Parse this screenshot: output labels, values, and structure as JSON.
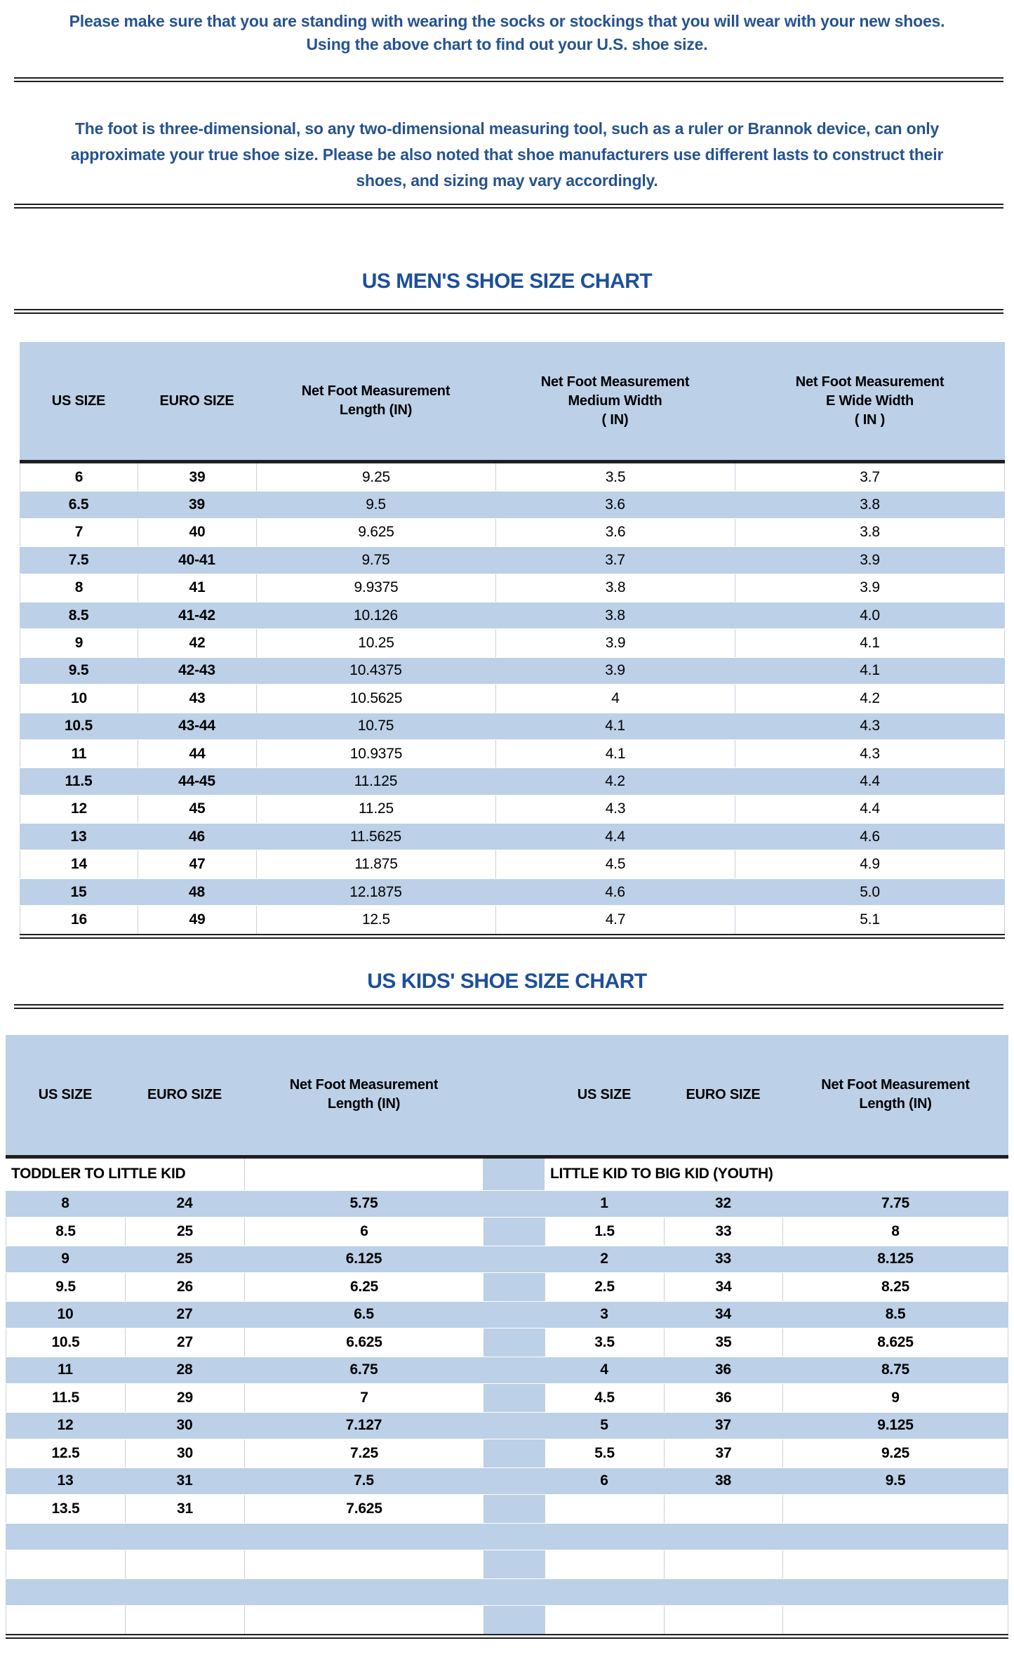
{
  "colors": {
    "row_blue": "#bcd0e7",
    "text_blue": "#26538f",
    "title_blue": "#1d4f9b",
    "line_dark": "#1e1e1e",
    "cell_border": "#c9d1da"
  },
  "intro": "Please make sure that you are standing with wearing the socks or stockings that you will wear with your new shoes.\nUsing the above chart to find out your U.S. shoe size.",
  "note": "The foot is three-dimensional, so any two-dimensional measuring tool, such as a ruler or Brannok device, can only\napproximate your true shoe size. Please be also noted that shoe manufacturers use different lasts to construct their\nshoes, and sizing may vary accordingly.",
  "mens_chart": {
    "title": "US MEN'S SHOE SIZE CHART",
    "headers": [
      "US SIZE",
      "EURO SIZE",
      "Net Foot Measurement\nLength (IN)",
      "Net Foot Measurement\nMedium Width\n( IN)",
      "Net Foot Measurement\nE Wide Width\n( IN )"
    ],
    "rows": [
      [
        "6",
        "39",
        "9.25",
        "3.5",
        "3.7"
      ],
      [
        "6.5",
        "39",
        "9.5",
        "3.6",
        "3.8"
      ],
      [
        "7",
        "40",
        "9.625",
        "3.6",
        "3.8"
      ],
      [
        "7.5",
        "40-41",
        "9.75",
        "3.7",
        "3.9"
      ],
      [
        "8",
        "41",
        "9.9375",
        "3.8",
        "3.9"
      ],
      [
        "8.5",
        "41-42",
        "10.126",
        "3.8",
        "4.0"
      ],
      [
        "9",
        "42",
        "10.25",
        "3.9",
        "4.1"
      ],
      [
        "9.5",
        "42-43",
        "10.4375",
        "3.9",
        "4.1"
      ],
      [
        "10",
        "43",
        "10.5625",
        "4",
        "4.2"
      ],
      [
        "10.5",
        "43-44",
        "10.75",
        "4.1",
        "4.3"
      ],
      [
        "11",
        "44",
        "10.9375",
        "4.1",
        "4.3"
      ],
      [
        "11.5",
        "44-45",
        "11.125",
        "4.2",
        "4.4"
      ],
      [
        "12",
        "45",
        "11.25",
        "4.3",
        "4.4"
      ],
      [
        "13",
        "46",
        "11.5625",
        "4.4",
        "4.6"
      ],
      [
        "14",
        "47",
        "11.875",
        "4.5",
        "4.9"
      ],
      [
        "15",
        "48",
        "12.1875",
        "4.6",
        "5.0"
      ],
      [
        "16",
        "49",
        "12.5",
        "4.7",
        "5.1"
      ]
    ]
  },
  "kids_chart": {
    "title": "US KIDS' SHOE SIZE CHART",
    "headers": [
      "US SIZE",
      "EURO SIZE",
      "Net Foot Measurement\nLength (IN)",
      "US SIZE",
      "EURO SIZE",
      "Net Foot Measurement\nLength (IN)"
    ],
    "left_section_label": "TODDLER TO LITTLE KID",
    "right_section_label": "LITTLE KID TO BIG KID (YOUTH)",
    "rows": [
      [
        "8",
        "24",
        "5.75",
        "1",
        "32",
        "7.75"
      ],
      [
        "8.5",
        "25",
        "6",
        "1.5",
        "33",
        "8"
      ],
      [
        "9",
        "25",
        "6.125",
        "2",
        "33",
        "8.125"
      ],
      [
        "9.5",
        "26",
        "6.25",
        "2.5",
        "34",
        "8.25"
      ],
      [
        "10",
        "27",
        "6.5",
        "3",
        "34",
        "8.5"
      ],
      [
        "10.5",
        "27",
        "6.625",
        "3.5",
        "35",
        "8.625"
      ],
      [
        "11",
        "28",
        "6.75",
        "4",
        "36",
        "8.75"
      ],
      [
        "11.5",
        "29",
        "7",
        "4.5",
        "36",
        "9"
      ],
      [
        "12",
        "30",
        "7.127",
        "5",
        "37",
        "9.125"
      ],
      [
        "12.5",
        "30",
        "7.25",
        "5.5",
        "37",
        "9.25"
      ],
      [
        "13",
        "31",
        "7.5",
        "6",
        "38",
        "9.5"
      ],
      [
        "13.5",
        "31",
        "7.625",
        "",
        "",
        ""
      ],
      [
        "",
        "",
        "",
        "",
        "",
        ""
      ],
      [
        "",
        "",
        "",
        "",
        "",
        ""
      ],
      [
        "",
        "",
        "",
        "",
        "",
        ""
      ],
      [
        "",
        "",
        "",
        "",
        "",
        ""
      ]
    ]
  }
}
